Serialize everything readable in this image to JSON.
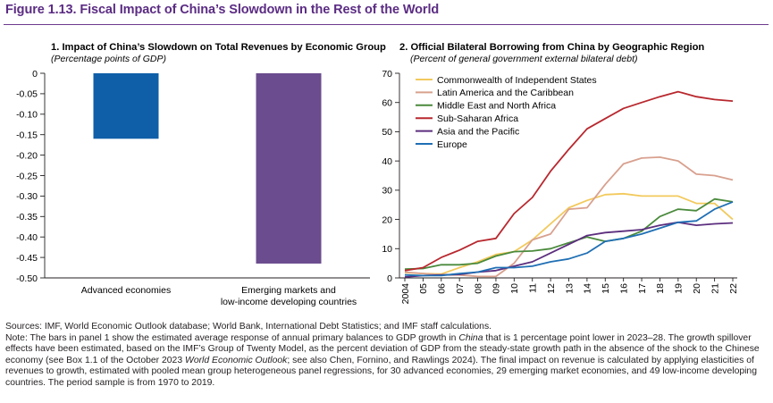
{
  "figure_title": "Figure 1.13. Fiscal Impact of China’s Slowdown in the Rest of the World",
  "chart_data": [
    {
      "type": "bar",
      "title": "1. Impact of China’s Slowdown on Total Revenues by Economic Group",
      "subtitle": "(Percentage points of GDP)",
      "categories": [
        "Advanced economies",
        "Emerging markets and low-income developing countries"
      ],
      "category_lines": [
        [
          "Advanced economies"
        ],
        [
          "Emerging markets and",
          "low-income developing countries"
        ]
      ],
      "values": [
        -0.16,
        -0.465
      ],
      "colors": [
        "#0f5fa8",
        "#6b4c8e"
      ],
      "ylim": [
        -0.5,
        0
      ],
      "yticks": [
        0,
        -0.05,
        -0.1,
        -0.15,
        -0.2,
        -0.25,
        -0.3,
        -0.35,
        -0.4,
        -0.45,
        -0.5
      ],
      "ytick_labels": [
        "0",
        "-0.05",
        "-0.10",
        "-0.15",
        "-0.20",
        "-0.25",
        "-0.30",
        "-0.35",
        "-0.40",
        "-0.45",
        "-0.50"
      ],
      "xlabel": "",
      "ylabel": "",
      "grid": false
    },
    {
      "type": "line",
      "title": "2. Official Bilateral Borrowing from China by Geographic Region",
      "subtitle": "(Percent of general government external bilateral debt)",
      "x": [
        2004,
        2005,
        2006,
        2007,
        2008,
        2009,
        2010,
        2011,
        2012,
        2013,
        2014,
        2015,
        2016,
        2017,
        2018,
        2019,
        2020,
        2021,
        2022
      ],
      "xtick_labels": [
        "2004",
        "05",
        "06",
        "07",
        "08",
        "09",
        "10",
        "11",
        "12",
        "13",
        "14",
        "15",
        "16",
        "17",
        "18",
        "19",
        "20",
        "21",
        "22"
      ],
      "ylim": [
        0,
        70
      ],
      "yticks": [
        0,
        10,
        20,
        30,
        40,
        50,
        60,
        70
      ],
      "legend_position": "top-left",
      "grid": false,
      "series": [
        {
          "name": "Commonwealth of Independent States",
          "color": "#f2c95c",
          "values": [
            1.8,
            1.5,
            1.3,
            3.5,
            5.5,
            8.0,
            9.0,
            13.0,
            18.5,
            24.0,
            26.5,
            28.5,
            28.8,
            28.0,
            28.0,
            28.0,
            25.5,
            25.5,
            20.0
          ]
        },
        {
          "name": "Latin America and the Caribbean",
          "color": "#d8a08e",
          "values": [
            2.0,
            1.5,
            1.0,
            1.0,
            0.5,
            0.5,
            5.0,
            13.0,
            15.0,
            23.5,
            24.0,
            32.0,
            39.0,
            41.0,
            41.3,
            40.0,
            35.5,
            35.0,
            33.5
          ]
        },
        {
          "name": "Middle East and North Africa",
          "color": "#4a8a3c",
          "values": [
            3.0,
            3.2,
            4.5,
            4.5,
            5.0,
            7.5,
            9.0,
            9.2,
            10.0,
            12.0,
            14.0,
            12.5,
            13.5,
            16.0,
            21.0,
            23.5,
            23.0,
            27.0,
            26.0
          ]
        },
        {
          "name": "Sub-Saharan Africa",
          "color": "#b8282e",
          "values": [
            2.5,
            3.5,
            7.0,
            9.5,
            12.5,
            13.5,
            22.0,
            27.5,
            36.5,
            44.0,
            51.0,
            54.5,
            58.0,
            60.0,
            62.0,
            63.7,
            62.0,
            61.0,
            60.5
          ]
        },
        {
          "name": "Asia and the Pacific",
          "color": "#5c2e7e",
          "values": [
            0.3,
            0.8,
            1.0,
            1.2,
            2.0,
            2.5,
            4.0,
            5.5,
            8.5,
            11.5,
            14.5,
            15.5,
            16.0,
            16.5,
            18.0,
            19.0,
            18.0,
            18.5,
            18.8
          ]
        },
        {
          "name": "Europe",
          "color": "#1f6fb4",
          "values": [
            1.0,
            0.8,
            0.8,
            1.5,
            2.0,
            3.5,
            3.5,
            4.0,
            5.5,
            6.5,
            8.5,
            12.5,
            13.5,
            15.0,
            17.0,
            19.0,
            19.5,
            23.5,
            26.0
          ]
        }
      ]
    }
  ],
  "notes": {
    "sources": "Sources: IMF, World Economic Outlook database; World Bank, International Debt Statistics; and IMF staff calculations.",
    "note_part1": "Note: The bars in panel 1 show the estimated average response of annual primary balances to GDP growth in ",
    "note_italic1": "China",
    "note_part2": " that is 1 percentage point lower in 2023–28. The growth spillover effects have been estimated, based on the IMF’s Group of Twenty Model, as the percent deviation of GDP from the steady-state growth path in the absence of the shock to the Chinese economy (see Box 1.1 of the October 2023 ",
    "note_italic2": "World Economic Outlook",
    "note_part3": "; see also Chen, Fornino, and Rawlings 2024). The final impact on revenue is calculated by applying elasticities of revenues to growth, estimated with pooled mean group heterogeneous panel regressions, for 30 advanced economies, 29 emerging market economies, and 49 low-income developing countries. The period sample is from 1970 to 2019."
  }
}
